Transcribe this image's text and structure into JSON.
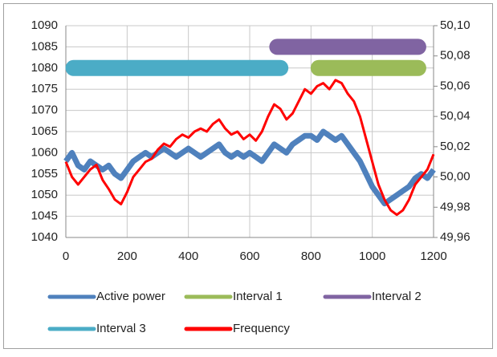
{
  "chart_data": {
    "type": "line",
    "xlim": [
      0,
      1200
    ],
    "xticks": [
      0,
      200,
      400,
      600,
      800,
      1000,
      1200
    ],
    "ylim": [
      1040,
      1090
    ],
    "yticks": [
      1040,
      1045,
      1050,
      1055,
      1060,
      1065,
      1070,
      1075,
      1080,
      1085,
      1090
    ],
    "y2lim": [
      49.96,
      50.1
    ],
    "y2ticks": [
      {
        "value": 49.96,
        "label": "49,96"
      },
      {
        "value": 49.98,
        "label": "49,98"
      },
      {
        "value": 50.0,
        "label": "50,00"
      },
      {
        "value": 50.02,
        "label": "50,02"
      },
      {
        "value": 50.04,
        "label": "50,04"
      },
      {
        "value": 50.06,
        "label": "50,06"
      },
      {
        "value": 50.08,
        "label": "50,08"
      },
      {
        "value": 50.1,
        "label": "50,10"
      }
    ],
    "grid": true,
    "legend": "bottom",
    "x": [
      0,
      20,
      40,
      60,
      80,
      100,
      120,
      140,
      160,
      180,
      200,
      220,
      240,
      260,
      280,
      300,
      320,
      340,
      360,
      380,
      400,
      420,
      440,
      460,
      480,
      500,
      520,
      540,
      560,
      580,
      600,
      620,
      640,
      660,
      680,
      700,
      720,
      740,
      760,
      780,
      800,
      820,
      840,
      860,
      880,
      900,
      920,
      940,
      960,
      980,
      1000,
      1020,
      1040,
      1060,
      1080,
      1100,
      1120,
      1140,
      1160,
      1180,
      1200
    ],
    "series": [
      {
        "name": "Active power",
        "color": "#4f81bd",
        "values": [
          1058,
          1060,
          1057,
          1056,
          1058,
          1057,
          1056,
          1057,
          1055,
          1054,
          1056,
          1058,
          1059,
          1060,
          1059,
          1060,
          1061,
          1060,
          1059,
          1060,
          1061,
          1060,
          1059,
          1060,
          1061,
          1062,
          1060,
          1059,
          1060,
          1059,
          1060,
          1059,
          1058,
          1060,
          1062,
          1061,
          1060,
          1062,
          1063,
          1064,
          1064,
          1063,
          1065,
          1064,
          1063,
          1064,
          1062,
          1060,
          1058,
          1055,
          1052,
          1050,
          1048,
          1049,
          1050,
          1051,
          1052,
          1054,
          1055,
          1054,
          1056
        ]
      },
      {
        "name": "Interval 1",
        "color": "#9bbb59",
        "x": [
          825,
          1150
        ],
        "values": [
          1080,
          1080
        ]
      },
      {
        "name": "Interval 2",
        "color": "#8064a2",
        "x": [
          690,
          1150
        ],
        "values": [
          1085,
          1085
        ]
      },
      {
        "name": "Interval 3",
        "color": "#4bacc6",
        "x": [
          25,
          700
        ],
        "values": [
          1080,
          1080
        ]
      },
      {
        "name": "Frequency",
        "color": "#ff0000",
        "axis": "y2",
        "values": [
          50.01,
          50.0,
          49.995,
          50.0,
          50.005,
          50.008,
          49.998,
          49.992,
          49.985,
          49.982,
          49.99,
          50.0,
          50.005,
          50.01,
          50.012,
          50.018,
          50.022,
          50.02,
          50.025,
          50.028,
          50.026,
          50.03,
          50.032,
          50.03,
          50.035,
          50.038,
          50.032,
          50.028,
          50.03,
          50.025,
          50.028,
          50.024,
          50.03,
          50.04,
          50.048,
          50.045,
          50.038,
          50.042,
          50.05,
          50.058,
          50.055,
          50.06,
          50.062,
          50.058,
          50.064,
          50.062,
          50.055,
          50.05,
          50.04,
          50.025,
          50.01,
          49.995,
          49.985,
          49.978,
          49.975,
          49.978,
          49.985,
          49.995,
          50.0,
          50.005,
          50.015
        ]
      }
    ]
  }
}
